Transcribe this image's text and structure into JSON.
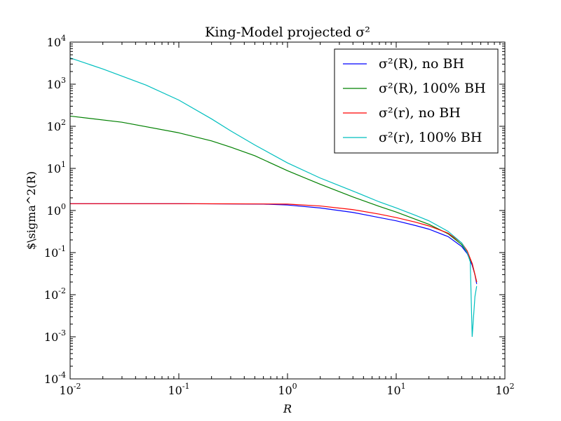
{
  "chart_data": {
    "type": "line",
    "title": "King-Model projected σ²",
    "xlabel": "R",
    "ylabel": "$\\sigma^2(R)",
    "xscale": "log",
    "yscale": "log",
    "xlim": [
      0.01,
      100
    ],
    "ylim": [
      0.0001,
      10000
    ],
    "grid": false,
    "legend_position": "top-right",
    "x_ticks": [
      {
        "value": 0.01,
        "base": "10",
        "exp": "-2"
      },
      {
        "value": 0.1,
        "base": "10",
        "exp": "-1"
      },
      {
        "value": 1,
        "base": "10",
        "exp": "0"
      },
      {
        "value": 10,
        "base": "10",
        "exp": "1"
      },
      {
        "value": 100,
        "base": "10",
        "exp": "2"
      }
    ],
    "y_ticks": [
      {
        "value": 0.0001,
        "base": "10",
        "exp": "-4"
      },
      {
        "value": 0.001,
        "base": "10",
        "exp": "-3"
      },
      {
        "value": 0.01,
        "base": "10",
        "exp": "-2"
      },
      {
        "value": 0.1,
        "base": "10",
        "exp": "-1"
      },
      {
        "value": 1,
        "base": "10",
        "exp": "0"
      },
      {
        "value": 10,
        "base": "10",
        "exp": "1"
      },
      {
        "value": 100,
        "base": "10",
        "exp": "2"
      },
      {
        "value": 1000,
        "base": "10",
        "exp": "3"
      },
      {
        "value": 10000,
        "base": "10",
        "exp": "4"
      }
    ],
    "series": [
      {
        "name": "σ²(R), no BH",
        "color": "#0000ff",
        "x": [
          0.01,
          0.03,
          0.1,
          0.3,
          0.6,
          1.0,
          2.0,
          4.0,
          7.0,
          10.0,
          15.0,
          20.0,
          30.0,
          40.0,
          45.0,
          50.0,
          53.0,
          55.0
        ],
        "y": [
          1.45,
          1.45,
          1.45,
          1.43,
          1.42,
          1.35,
          1.15,
          0.9,
          0.68,
          0.57,
          0.44,
          0.36,
          0.24,
          0.14,
          0.095,
          0.05,
          0.03,
          0.018
        ]
      },
      {
        "name": "σ²(R), 100% BH",
        "color": "#008000",
        "x": [
          0.01,
          0.03,
          0.1,
          0.2,
          0.3,
          0.5,
          1.0,
          2.0,
          4.0,
          7.0,
          10.0,
          15.0,
          20.0,
          30.0,
          40.0,
          45.0,
          50.0,
          53.0,
          55.0
        ],
        "y": [
          175,
          125,
          70,
          45,
          32,
          20,
          8.8,
          4.2,
          2.1,
          1.25,
          0.92,
          0.62,
          0.47,
          0.28,
          0.155,
          0.1,
          0.055,
          0.03,
          0.02
        ]
      },
      {
        "name": "σ²(r), no BH",
        "color": "#ff0000",
        "x": [
          0.01,
          0.03,
          0.1,
          0.3,
          0.6,
          1.0,
          2.0,
          4.0,
          7.0,
          10.0,
          15.0,
          20.0,
          30.0,
          40.0,
          45.0,
          50.0,
          53.0,
          55.0
        ],
        "y": [
          1.45,
          1.45,
          1.45,
          1.44,
          1.43,
          1.42,
          1.28,
          1.05,
          0.82,
          0.68,
          0.53,
          0.43,
          0.29,
          0.17,
          0.11,
          0.055,
          0.03,
          0.02
        ]
      },
      {
        "name": "σ²(r), 100% BH",
        "color": "#00bfbf",
        "x": [
          0.01,
          0.02,
          0.05,
          0.1,
          0.2,
          0.3,
          0.5,
          1.0,
          2.0,
          4.0,
          7.0,
          10.0,
          15.0,
          20.0,
          30.0,
          40.0,
          45.0,
          48.0,
          50.0,
          53.0,
          55.0
        ],
        "y": [
          4200,
          2300,
          950,
          420,
          150,
          78,
          36,
          13.5,
          5.9,
          2.9,
          1.6,
          1.15,
          0.77,
          0.57,
          0.32,
          0.17,
          0.1,
          0.06,
          0.001,
          0.009,
          0.016
        ]
      }
    ]
  }
}
